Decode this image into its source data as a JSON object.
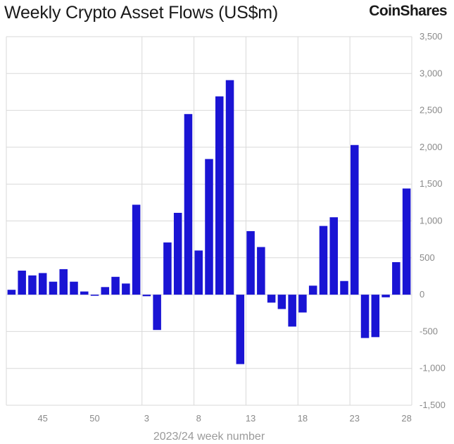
{
  "title": "Weekly Crypto Asset Flows (US$m)",
  "brand": "CoinShares",
  "colors": {
    "bar": "#1a14d4",
    "grid": "#d9d9d9",
    "axis_text": "#8a8a8a"
  },
  "chart_data": {
    "type": "bar",
    "title": "Weekly Crypto Asset Flows (US$m)",
    "xlabel": "2023/24 week number",
    "ylabel": "",
    "ylim": [
      -1500,
      3500
    ],
    "yticks": [
      "3,500",
      "3,000",
      "2,500",
      "2,000",
      "1,500",
      "1,000",
      "500",
      "0",
      "-500",
      "-1,000",
      "-1,500"
    ],
    "ytick_values": [
      3500,
      3000,
      2500,
      2000,
      1500,
      1000,
      500,
      0,
      -500,
      -1000,
      -1500
    ],
    "grid": true,
    "y_axis_side": "right",
    "categories": [
      "42",
      "43",
      "44",
      "45",
      "46",
      "47",
      "48",
      "49",
      "50",
      "51",
      "52",
      "1",
      "2",
      "3",
      "4",
      "5",
      "6",
      "7",
      "8",
      "9",
      "10",
      "11",
      "12",
      "13",
      "14",
      "15",
      "16",
      "17",
      "18",
      "19",
      "20",
      "21",
      "22",
      "23",
      "24",
      "25",
      "26",
      "27",
      "28"
    ],
    "xtick_labels": [
      "45",
      "50",
      "3",
      "8",
      "13",
      "18",
      "23",
      "28"
    ],
    "values": [
      66,
      326,
      261,
      293,
      176,
      346,
      176,
      43,
      -15,
      103,
      242,
      151,
      1220,
      -21,
      -479,
      708,
      1110,
      2450,
      599,
      1840,
      2690,
      2910,
      -942,
      862,
      646,
      -108,
      -195,
      -433,
      -242,
      122,
      932,
      1050,
      185,
      2030,
      -588,
      -576,
      -36,
      441,
      1440
    ]
  }
}
